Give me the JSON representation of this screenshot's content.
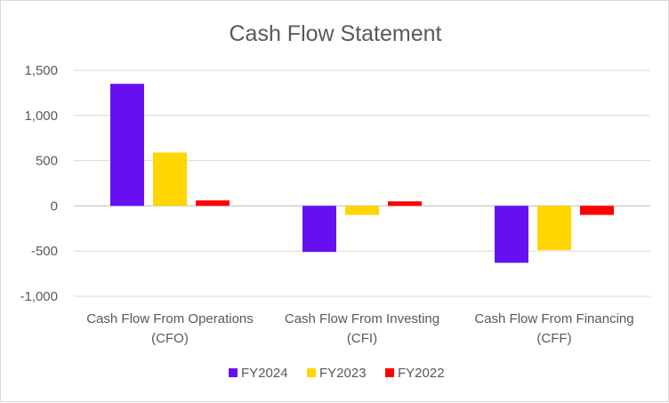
{
  "chart_data": {
    "type": "bar",
    "title": "Cash Flow Statement",
    "categories": [
      [
        "Cash Flow From Operations",
        "(CFO)"
      ],
      [
        "Cash Flow From Investing",
        "(CFI)"
      ],
      [
        "Cash Flow From Financing",
        "(CFF)"
      ]
    ],
    "series": [
      {
        "name": "FY2024",
        "color": "#6610f2",
        "values": [
          1350,
          -510,
          -630
        ]
      },
      {
        "name": "FY2023",
        "color": "#ffd600",
        "values": [
          590,
          -100,
          -490
        ]
      },
      {
        "name": "FY2022",
        "color": "#ff0000",
        "values": [
          60,
          50,
          -100
        ]
      }
    ],
    "ylim": [
      -1000,
      1500
    ],
    "yticks": [
      1500,
      1000,
      500,
      0,
      -500,
      -1000
    ],
    "ytick_labels": [
      "1,500",
      "1,000",
      "500",
      "0",
      "-500",
      "-1,000"
    ],
    "grid": true,
    "legend_position": "bottom"
  }
}
